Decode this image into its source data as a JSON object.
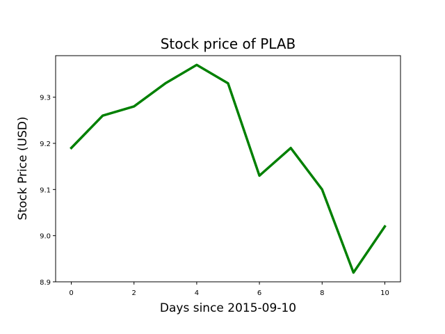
{
  "chart_data": {
    "type": "line",
    "title": "Stock price of PLAB",
    "xlabel": "Days since 2015-09-10",
    "ylabel": "Stock Price (USD)",
    "x": [
      0,
      1,
      2,
      3,
      4,
      5,
      6,
      7,
      8,
      9,
      10
    ],
    "series": [
      {
        "values": [
          9.19,
          9.26,
          9.28,
          9.33,
          9.37,
          9.33,
          9.13,
          9.19,
          9.1,
          8.92,
          9.02
        ],
        "color": "#008000"
      }
    ],
    "xlim": [
      -0.5,
      10.5
    ],
    "ylim": [
      8.9,
      9.39
    ],
    "xticks": [
      "0",
      "2",
      "4",
      "6",
      "8",
      "10"
    ],
    "yticks": [
      "8.9",
      "9.0",
      "9.1",
      "9.2",
      "9.3"
    ],
    "grid": false,
    "legend": "none"
  }
}
